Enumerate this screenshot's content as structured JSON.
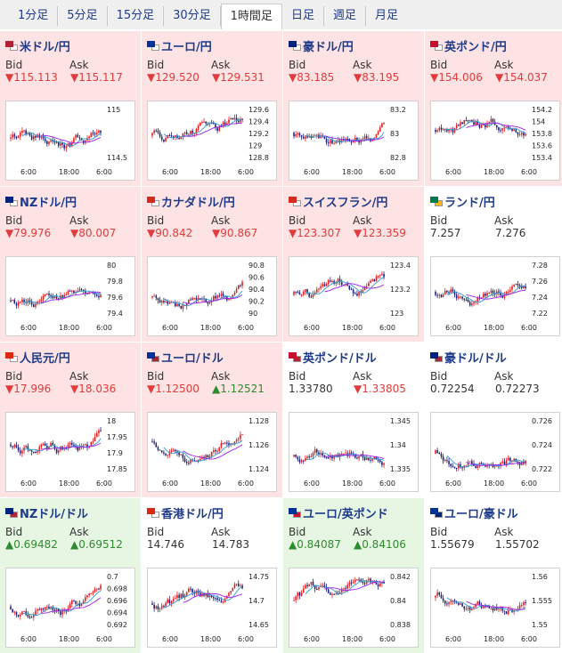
{
  "tabs": [
    {
      "label": "1分足",
      "active": false
    },
    {
      "label": "5分足",
      "active": false
    },
    {
      "label": "15分足",
      "active": false
    },
    {
      "label": "30分足",
      "active": false
    },
    {
      "label": "1時間足",
      "active": true
    },
    {
      "label": "日足",
      "active": false
    },
    {
      "label": "週足",
      "active": false
    },
    {
      "label": "月足",
      "active": false
    }
  ],
  "labels": {
    "bid": "Bid",
    "ask": "Ask"
  },
  "colors": {
    "up": "#2e8b2e",
    "down": "#e23b3b",
    "link": "#1e3a8a",
    "candle_red": "#e02020",
    "candle_navy": "#1a237e",
    "ma": "#a020f0",
    "ma2": "#2e9bd6"
  },
  "pairs": [
    {
      "name": "米ドル/円",
      "bg": "red",
      "flags": [
        "#b22234",
        "#ffffff"
      ],
      "bid": "115.113",
      "bid_dir": "down",
      "ask": "115.117",
      "ask_dir": "down",
      "yticks": [
        "115",
        "114.5"
      ],
      "xticks": [
        "6:00",
        "18:00",
        "6:00"
      ]
    },
    {
      "name": "ユーロ/円",
      "bg": "red",
      "flags": [
        "#003399",
        "#ffffff"
      ],
      "bid": "129.520",
      "bid_dir": "down",
      "ask": "129.531",
      "ask_dir": "down",
      "yticks": [
        "129.6",
        "129.4",
        "129.2",
        "129",
        "128.8"
      ],
      "xticks": [
        "6:00",
        "18:00",
        "6:00"
      ]
    },
    {
      "name": "豪ドル/円",
      "bg": "red",
      "flags": [
        "#00247d",
        "#ffffff"
      ],
      "bid": "83.185",
      "bid_dir": "down",
      "ask": "83.195",
      "ask_dir": "down",
      "yticks": [
        "83.2",
        "83",
        "82.8"
      ],
      "xticks": [
        "6:00",
        "18:00",
        "6:00"
      ]
    },
    {
      "name": "英ポンド/円",
      "bg": "red",
      "flags": [
        "#c8102e",
        "#ffffff"
      ],
      "bid": "154.006",
      "bid_dir": "down",
      "ask": "154.037",
      "ask_dir": "down",
      "yticks": [
        "154.2",
        "154",
        "153.8",
        "153.6",
        "153.4"
      ],
      "xticks": [
        "6:00",
        "18:00",
        "6:00"
      ]
    },
    {
      "name": "NZドル/円",
      "bg": "red",
      "flags": [
        "#00247d",
        "#ffffff"
      ],
      "bid": "79.976",
      "bid_dir": "down",
      "ask": "80.007",
      "ask_dir": "down",
      "yticks": [
        "80",
        "79.8",
        "79.6",
        "79.4"
      ],
      "xticks": [
        "6:00",
        "18:00",
        "6:00"
      ]
    },
    {
      "name": "カナダドル/円",
      "bg": "red",
      "flags": [
        "#d52b1e",
        "#ffffff"
      ],
      "bid": "90.842",
      "bid_dir": "down",
      "ask": "90.867",
      "ask_dir": "down",
      "yticks": [
        "90.8",
        "90.6",
        "90.4",
        "90.2",
        "90"
      ],
      "xticks": [
        "6:00",
        "18:00",
        "6:00"
      ]
    },
    {
      "name": "スイスフラン/円",
      "bg": "red",
      "flags": [
        "#d52b1e",
        "#ffffff"
      ],
      "bid": "123.307",
      "bid_dir": "down",
      "ask": "123.359",
      "ask_dir": "down",
      "yticks": [
        "123.4",
        "123.2",
        "123"
      ],
      "xticks": [
        "6:00",
        "18:00",
        "6:00"
      ]
    },
    {
      "name": "ランド/円",
      "bg": "white",
      "flags": [
        "#007a4d",
        "#ffb612"
      ],
      "bid": "7.257",
      "bid_dir": "same",
      "ask": "7.276",
      "ask_dir": "same",
      "yticks": [
        "7.28",
        "7.26",
        "7.24",
        "7.22"
      ],
      "xticks": [
        "6:00",
        "18:00",
        "6:00"
      ]
    },
    {
      "name": "人民元/円",
      "bg": "red",
      "flags": [
        "#de2910",
        "#ffffff"
      ],
      "bid": "17.996",
      "bid_dir": "down",
      "ask": "18.036",
      "ask_dir": "down",
      "yticks": [
        "18",
        "17.95",
        "17.9",
        "17.85"
      ],
      "xticks": [
        "6:00",
        "18:00",
        "6:00"
      ]
    },
    {
      "name": "ユーロ/ドル",
      "bg": "red",
      "flags": [
        "#003399",
        "#b22234"
      ],
      "bid": "1.12500",
      "bid_dir": "down",
      "ask": "1.12521",
      "ask_dir": "up",
      "yticks": [
        "1.128",
        "1.126",
        "1.124"
      ],
      "xticks": [
        "6:00",
        "18:00",
        "6:00"
      ]
    },
    {
      "name": "英ポンド/ドル",
      "bg": "white",
      "flags": [
        "#c8102e",
        "#b22234"
      ],
      "bid": "1.33780",
      "bid_dir": "same",
      "ask": "1.33805",
      "ask_dir": "down",
      "yticks": [
        "1.345",
        "1.34",
        "1.335"
      ],
      "xticks": [
        "6:00",
        "18:00",
        "6:00"
      ]
    },
    {
      "name": "豪ドル/ドル",
      "bg": "white",
      "flags": [
        "#00247d",
        "#b22234"
      ],
      "bid": "0.72254",
      "bid_dir": "same",
      "ask": "0.72273",
      "ask_dir": "same",
      "yticks": [
        "0.726",
        "0.724",
        "0.722"
      ],
      "xticks": [
        "6:00",
        "18:00",
        "6:00"
      ]
    },
    {
      "name": "NZドル/ドル",
      "bg": "green",
      "flags": [
        "#00247d",
        "#b22234"
      ],
      "bid": "0.69482",
      "bid_dir": "up",
      "ask": "0.69512",
      "ask_dir": "up",
      "yticks": [
        "0.7",
        "0.698",
        "0.696",
        "0.694",
        "0.692"
      ],
      "xticks": [
        "6:00",
        "18:00",
        "6:00"
      ]
    },
    {
      "name": "香港ドル/円",
      "bg": "white",
      "flags": [
        "#de2910",
        "#ffffff"
      ],
      "bid": "14.746",
      "bid_dir": "same",
      "ask": "14.783",
      "ask_dir": "same",
      "yticks": [
        "14.75",
        "14.7",
        "14.65"
      ],
      "xticks": [
        "6:00",
        "18:00",
        "6:00"
      ]
    },
    {
      "name": "ユーロ/英ポンド",
      "bg": "green",
      "flags": [
        "#003399",
        "#c8102e"
      ],
      "bid": "0.84087",
      "bid_dir": "up",
      "ask": "0.84106",
      "ask_dir": "up",
      "yticks": [
        "0.842",
        "0.84",
        "0.838"
      ],
      "xticks": [
        "6:00",
        "18:00",
        "6:00"
      ]
    },
    {
      "name": "ユーロ/豪ドル",
      "bg": "white",
      "flags": [
        "#003399",
        "#00247d"
      ],
      "bid": "1.55679",
      "bid_dir": "same",
      "ask": "1.55702",
      "ask_dir": "same",
      "yticks": [
        "1.56",
        "1.555",
        "1.55"
      ],
      "xticks": [
        "6:00",
        "18:00",
        "6:00"
      ]
    }
  ]
}
